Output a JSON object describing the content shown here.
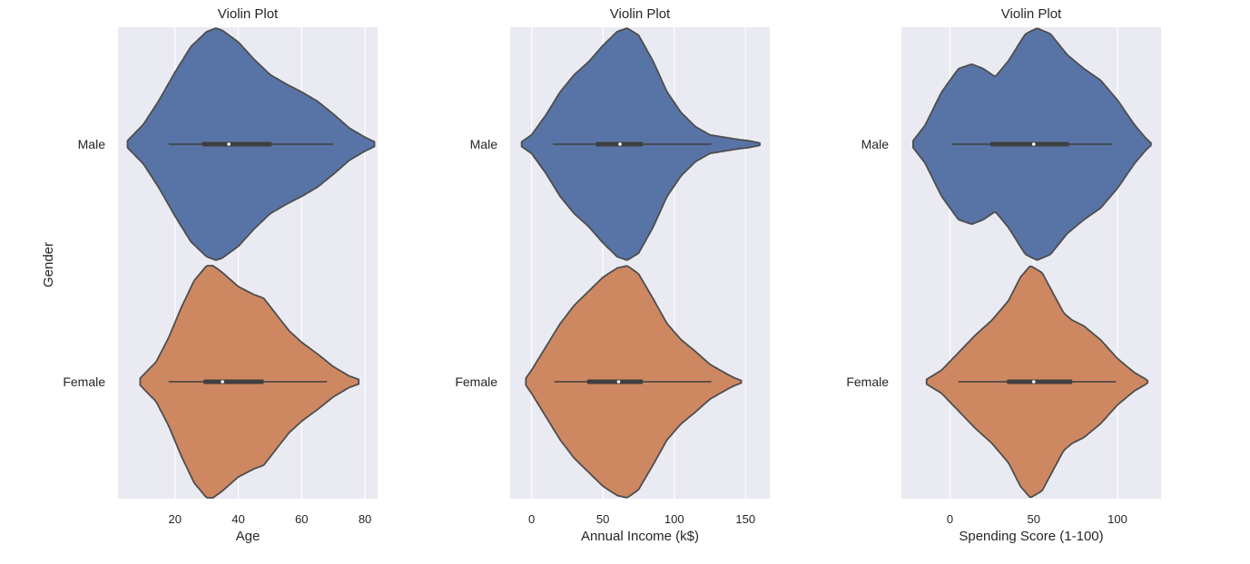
{
  "colors": {
    "background": "#eaeaf2",
    "grid": "#ffffff",
    "male": "#5874a6",
    "female": "#cd8862",
    "outline": "#4d4d4d",
    "box": "#3f3f3f",
    "median": "#ffffff"
  },
  "chart_data": [
    {
      "type": "violin",
      "title": "Violin Plot",
      "xlabel": "Age",
      "ylabel": "Gender",
      "categories": [
        "Male",
        "Female"
      ],
      "xlim": [
        2,
        84
      ],
      "xticks": [
        20,
        40,
        60,
        80
      ],
      "grid": true,
      "series": [
        {
          "name": "Male",
          "whisker": [
            18,
            70
          ],
          "box": [
            28.5,
            50.5
          ],
          "median": 37,
          "kde": {
            "x": [
              5,
              10,
              15,
              20,
              25,
              30,
              33,
              35,
              40,
              45,
              50,
              55,
              60,
              65,
              70,
              75,
              80,
              83
            ],
            "d": [
              0.03,
              0.17,
              0.38,
              0.62,
              0.84,
              0.97,
              1.0,
              0.98,
              0.88,
              0.73,
              0.6,
              0.52,
              0.45,
              0.37,
              0.26,
              0.14,
              0.06,
              0.02
            ]
          }
        },
        {
          "name": "Female",
          "whisker": [
            18,
            68
          ],
          "box": [
            29,
            48
          ],
          "median": 35,
          "kde": {
            "x": [
              9,
              14,
              18,
              22,
              26,
              30,
              32,
              35,
              40,
              45,
              48,
              52,
              56,
              60,
              65,
              70,
              75,
              78
            ],
            "d": [
              0.03,
              0.17,
              0.38,
              0.64,
              0.87,
              1.0,
              1.0,
              0.94,
              0.82,
              0.75,
              0.72,
              0.58,
              0.44,
              0.34,
              0.24,
              0.13,
              0.05,
              0.02
            ]
          }
        }
      ]
    },
    {
      "type": "violin",
      "title": "Violin Plot",
      "xlabel": "Annual Income (k$)",
      "ylabel": "",
      "categories": [
        "Male",
        "Female"
      ],
      "xlim": [
        -15,
        167
      ],
      "xticks": [
        0,
        50,
        100,
        150
      ],
      "grid": true,
      "series": [
        {
          "name": "Male",
          "whisker": [
            15,
            126
          ],
          "box": [
            45,
            78
          ],
          "median": 62,
          "kde": {
            "x": [
              -7,
              0,
              10,
              20,
              30,
              40,
              50,
              60,
              67,
              75,
              85,
              95,
              105,
              115,
              125,
              135,
              145,
              152,
              160
            ],
            "d": [
              0.02,
              0.08,
              0.25,
              0.45,
              0.6,
              0.71,
              0.85,
              0.97,
              1.0,
              0.94,
              0.72,
              0.45,
              0.27,
              0.15,
              0.08,
              0.06,
              0.04,
              0.03,
              0.01
            ]
          }
        },
        {
          "name": "Female",
          "whisker": [
            16,
            126
          ],
          "box": [
            39,
            78
          ],
          "median": 61,
          "kde": {
            "x": [
              -4,
              0,
              10,
              20,
              30,
              40,
              50,
              60,
              67,
              75,
              85,
              95,
              105,
              115,
              125,
              135,
              141,
              147
            ],
            "d": [
              0.03,
              0.1,
              0.3,
              0.5,
              0.66,
              0.78,
              0.9,
              0.98,
              1.0,
              0.93,
              0.72,
              0.5,
              0.36,
              0.26,
              0.15,
              0.08,
              0.04,
              0.01
            ]
          }
        }
      ]
    },
    {
      "type": "violin",
      "title": "Violin Plot",
      "xlabel": "Spending Score (1-100)",
      "ylabel": "",
      "categories": [
        "Male",
        "Female"
      ],
      "xlim": [
        -29,
        126
      ],
      "xticks": [
        0,
        50,
        100
      ],
      "grid": true,
      "series": [
        {
          "name": "Male",
          "whisker": [
            1,
            97
          ],
          "box": [
            24,
            71
          ],
          "median": 50,
          "kde": {
            "x": [
              -22,
              -15,
              -5,
              5,
              13,
              20,
              27,
              35,
              45,
              52,
              60,
              70,
              80,
              90,
              100,
              110,
              117,
              120
            ],
            "d": [
              0.03,
              0.16,
              0.45,
              0.65,
              0.69,
              0.65,
              0.58,
              0.72,
              0.95,
              1.0,
              0.95,
              0.77,
              0.65,
              0.55,
              0.38,
              0.17,
              0.05,
              0.01
            ]
          }
        },
        {
          "name": "Female",
          "whisker": [
            5,
            99
          ],
          "box": [
            34,
            73
          ],
          "median": 50,
          "kde": {
            "x": [
              -14,
              -5,
              5,
              15,
              25,
              35,
              42,
              48,
              55,
              62,
              68,
              73,
              80,
              90,
              100,
              110,
              116,
              118
            ],
            "d": [
              0.02,
              0.1,
              0.25,
              0.4,
              0.53,
              0.7,
              0.9,
              1.0,
              0.94,
              0.75,
              0.59,
              0.53,
              0.48,
              0.36,
              0.2,
              0.08,
              0.03,
              0.01
            ]
          }
        }
      ]
    }
  ]
}
